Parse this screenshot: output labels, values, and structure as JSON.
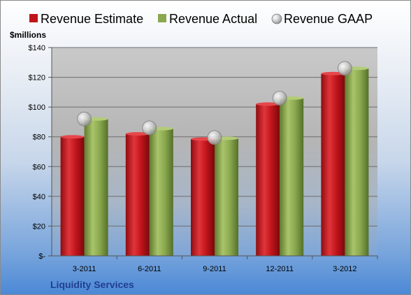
{
  "chart_data": {
    "type": "bar",
    "categories": [
      "3-2011",
      "6-2011",
      "9-2011",
      "12-2011",
      "3-2012"
    ],
    "series": [
      {
        "name": "Revenue Estimate",
        "kind": "bar",
        "values": [
          80,
          82,
          78.5,
          102,
          122.5
        ]
      },
      {
        "name": "Revenue Actual",
        "kind": "bar",
        "values": [
          92,
          85.5,
          79,
          106,
          126
        ]
      },
      {
        "name": "Revenue GAAP",
        "kind": "marker",
        "values": [
          92,
          86,
          79.5,
          106,
          126
        ]
      }
    ],
    "title": "",
    "ylabel": "$millions",
    "company": "Liquidity Services",
    "ylim": [
      0,
      140
    ],
    "yticks": [
      {
        "value": 0,
        "label": "$-"
      },
      {
        "value": 20,
        "label": "$20"
      },
      {
        "value": 40,
        "label": "$40"
      },
      {
        "value": 60,
        "label": "$60"
      },
      {
        "value": 80,
        "label": "$80"
      },
      {
        "value": 100,
        "label": "$100"
      },
      {
        "value": 120,
        "label": "$120"
      },
      {
        "value": 140,
        "label": "$140"
      }
    ],
    "grid": true,
    "legend_position": "top",
    "colors": {
      "estimate": "#c0141b",
      "actual": "#8aa84e",
      "gaap": "#bfbfbf",
      "company_text": "#1f3f8f"
    }
  }
}
